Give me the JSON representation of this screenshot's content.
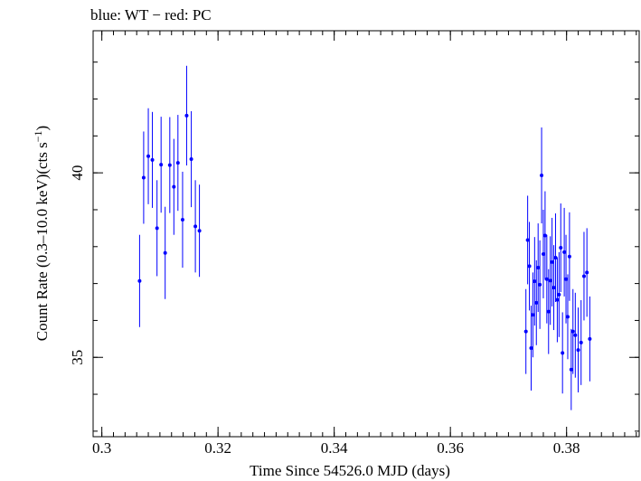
{
  "chart_data": {
    "type": "scatter",
    "title": "blue: WT − red: PC",
    "xlabel": "Time Since 54526.0 MJD (days)",
    "ylabel_main": "Count Rate (0.3–10.0 keV)(cts s",
    "ylabel_sup": "−1",
    "ylabel_end": ")",
    "xlim": [
      0.2985,
      0.3925
    ],
    "ylim": [
      32.85,
      43.85
    ],
    "x_ticks": [
      0.3,
      0.32,
      0.34,
      0.36,
      0.38
    ],
    "x_tick_labels": [
      "0.3",
      "0.32",
      "0.34",
      "0.36",
      "0.38"
    ],
    "x_minor_step": 0.002,
    "y_ticks": [
      35,
      40
    ],
    "y_tick_labels": [
      "35",
      "40"
    ],
    "y_minor_step": 1,
    "grid": false,
    "series": [
      {
        "mode": "WT",
        "color": "#0000ff",
        "points": [
          {
            "x": 0.3065,
            "y": 37.07,
            "err": 1.25
          },
          {
            "x": 0.3072,
            "y": 39.87,
            "err": 1.25
          },
          {
            "x": 0.308,
            "y": 40.45,
            "err": 1.3
          },
          {
            "x": 0.3087,
            "y": 40.35,
            "err": 1.3
          },
          {
            "x": 0.3095,
            "y": 38.5,
            "err": 1.3
          },
          {
            "x": 0.3102,
            "y": 40.22,
            "err": 1.3
          },
          {
            "x": 0.3109,
            "y": 37.83,
            "err": 1.25
          },
          {
            "x": 0.3117,
            "y": 40.21,
            "err": 1.3
          },
          {
            "x": 0.3124,
            "y": 39.62,
            "err": 1.3
          },
          {
            "x": 0.3131,
            "y": 40.27,
            "err": 1.3
          },
          {
            "x": 0.3139,
            "y": 38.73,
            "err": 1.3
          },
          {
            "x": 0.3146,
            "y": 41.55,
            "err": 1.35
          },
          {
            "x": 0.3154,
            "y": 40.37,
            "err": 1.3
          },
          {
            "x": 0.3161,
            "y": 38.55,
            "err": 1.25
          },
          {
            "x": 0.3168,
            "y": 38.43,
            "err": 1.25
          }
        ]
      },
      {
        "mode": "WT",
        "color": "#0000ff",
        "points": [
          {
            "x": 0.373,
            "y": 35.7,
            "err": 1.15
          },
          {
            "x": 0.3733,
            "y": 38.18,
            "err": 1.2
          },
          {
            "x": 0.3736,
            "y": 37.47,
            "err": 1.2
          },
          {
            "x": 0.3739,
            "y": 35.25,
            "err": 1.15
          },
          {
            "x": 0.3742,
            "y": 36.15,
            "err": 1.15
          },
          {
            "x": 0.3745,
            "y": 37.06,
            "err": 1.2
          },
          {
            "x": 0.3748,
            "y": 36.48,
            "err": 1.15
          },
          {
            "x": 0.3751,
            "y": 37.43,
            "err": 1.2
          },
          {
            "x": 0.3754,
            "y": 36.97,
            "err": 1.2
          },
          {
            "x": 0.3757,
            "y": 39.93,
            "err": 1.3
          },
          {
            "x": 0.376,
            "y": 37.8,
            "err": 1.2
          },
          {
            "x": 0.3763,
            "y": 38.3,
            "err": 1.2
          },
          {
            "x": 0.3766,
            "y": 37.12,
            "err": 1.2
          },
          {
            "x": 0.3769,
            "y": 36.24,
            "err": 1.15
          },
          {
            "x": 0.3772,
            "y": 37.08,
            "err": 1.2
          },
          {
            "x": 0.3775,
            "y": 37.58,
            "err": 1.2
          },
          {
            "x": 0.3778,
            "y": 36.89,
            "err": 1.15
          },
          {
            "x": 0.3781,
            "y": 37.7,
            "err": 1.2
          },
          {
            "x": 0.3784,
            "y": 36.56,
            "err": 1.15
          },
          {
            "x": 0.3787,
            "y": 36.7,
            "err": 1.15
          },
          {
            "x": 0.379,
            "y": 37.97,
            "err": 1.2
          },
          {
            "x": 0.3793,
            "y": 35.12,
            "err": 1.1
          },
          {
            "x": 0.3796,
            "y": 37.85,
            "err": 1.2
          },
          {
            "x": 0.3799,
            "y": 37.12,
            "err": 1.2
          },
          {
            "x": 0.3802,
            "y": 36.1,
            "err": 1.15
          },
          {
            "x": 0.3805,
            "y": 37.73,
            "err": 1.2
          },
          {
            "x": 0.3808,
            "y": 34.67,
            "err": 1.1
          },
          {
            "x": 0.3811,
            "y": 35.7,
            "err": 1.15
          },
          {
            "x": 0.3815,
            "y": 35.6,
            "err": 1.15
          },
          {
            "x": 0.382,
            "y": 35.2,
            "err": 1.15
          },
          {
            "x": 0.3825,
            "y": 35.4,
            "err": 1.15
          },
          {
            "x": 0.383,
            "y": 37.2,
            "err": 1.2
          },
          {
            "x": 0.3835,
            "y": 37.3,
            "err": 1.2
          },
          {
            "x": 0.384,
            "y": 35.5,
            "err": 1.15
          }
        ]
      }
    ]
  }
}
